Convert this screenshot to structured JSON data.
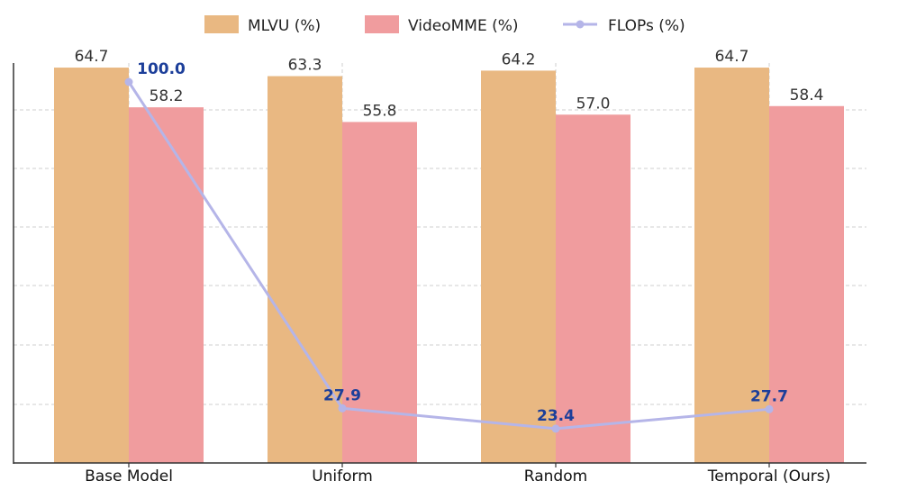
{
  "chart_data": {
    "type": "bar",
    "categories": [
      "Base Model",
      "Uniform",
      "Random",
      "Temporal (Ours)"
    ],
    "series": [
      {
        "name": "MLVU (%)",
        "kind": "bar",
        "values": [
          64.7,
          63.3,
          64.2,
          64.7
        ],
        "color": "#e9b882"
      },
      {
        "name": "VideoMME (%)",
        "kind": "bar",
        "values": [
          58.2,
          55.8,
          57.0,
          58.4
        ],
        "color": "#f09c9e"
      },
      {
        "name": "FLOPs (%)",
        "kind": "line",
        "values": [
          100.0,
          27.9,
          23.4,
          27.7
        ],
        "color": "#b5b5e8"
      }
    ],
    "bar_labels": [
      [
        "64.7",
        "63.3",
        "64.2",
        "64.7"
      ],
      [
        "58.2",
        "55.8",
        "57.0",
        "58.4"
      ]
    ],
    "line_labels": [
      "100.0",
      "27.9",
      "23.4",
      "27.7"
    ],
    "bar_ylim": [
      0,
      65
    ],
    "line_ylim": [
      20,
      100
    ],
    "grid": true,
    "legend": "top-center",
    "title": "",
    "xlabel": "",
    "ylabel": "",
    "label_color": "#1d3f9a"
  }
}
